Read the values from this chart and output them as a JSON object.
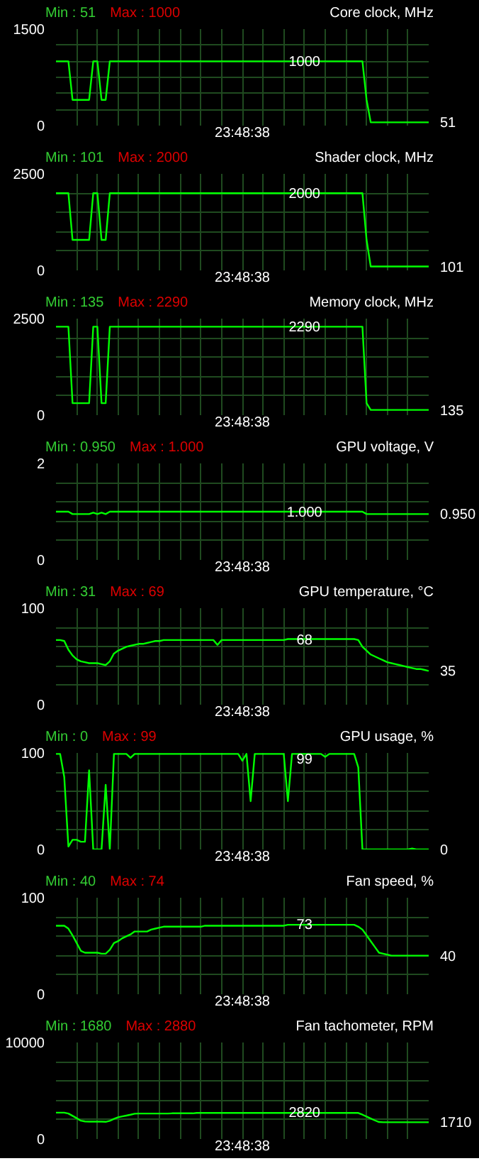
{
  "chart_data": [
    {
      "type": "line",
      "title": "Core clock, MHz",
      "xlabel": "23:48:38",
      "annotations": [
        "Min : 51",
        "Max : 1000",
        {
          "text": "1000",
          "y": 1000
        },
        "51"
      ],
      "color": "#00ff00",
      "ylim": [
        0,
        1500
      ],
      "grid": true,
      "yticks": [
        0,
        {
          "value": 250,
          "label": null
        },
        {
          "value": 500,
          "label": null
        },
        {
          "value": 750,
          "label": null
        },
        {
          "value": 1000,
          "label": null
        },
        {
          "value": 1250,
          "label": null
        },
        1500
      ],
      "categories": [
        null,
        null,
        null,
        null,
        null,
        null,
        null,
        null,
        null,
        null,
        null,
        null,
        null,
        null,
        null,
        null,
        null,
        null,
        null,
        null,
        null,
        null,
        null,
        null,
        null,
        null,
        null,
        null,
        null,
        null,
        null,
        null,
        null,
        null,
        null,
        null,
        null,
        null,
        null,
        null,
        null,
        null,
        null,
        null,
        null,
        null,
        null,
        null,
        null,
        null,
        null,
        null,
        null,
        null,
        null,
        null,
        null,
        null,
        null,
        null,
        null,
        null,
        null,
        null,
        null,
        null,
        null,
        null,
        null,
        null,
        null,
        null,
        null,
        null,
        null,
        null,
        null,
        null,
        null,
        null,
        null,
        null,
        null,
        null,
        null,
        null,
        null,
        null,
        null,
        null,
        null
      ],
      "values": [
        1000,
        1000,
        1000,
        1000,
        400,
        400,
        400,
        400,
        400,
        1000,
        1000,
        400,
        400,
        1000,
        1000,
        1000,
        1000,
        1000,
        1000,
        1000,
        1000,
        1000,
        1000,
        1000,
        1000,
        1000,
        1000,
        1000,
        1000,
        1000,
        1000,
        1000,
        1000,
        1000,
        1000,
        1000,
        1000,
        1000,
        1000,
        1000,
        1000,
        1000,
        1000,
        1000,
        1000,
        1000,
        1000,
        1000,
        1000,
        1000,
        1000,
        1000,
        1000,
        1000,
        1000,
        1000,
        1000,
        1000,
        1000,
        1000,
        1000,
        1000,
        1000,
        1000,
        1000,
        1000,
        1000,
        1000,
        1000,
        1000,
        1000,
        1000,
        1000,
        1000,
        1000,
        400,
        51,
        51,
        51,
        51,
        51,
        51,
        51,
        51,
        51,
        51,
        51,
        51,
        51,
        51,
        51
      ]
    },
    {
      "type": "line",
      "title": "Shader clock, MHz",
      "xlabel": "23:48:38",
      "annotations": [
        "Min : 101",
        "Max : 2000",
        {
          "text": "2000",
          "y": 2000
        },
        "101"
      ],
      "color": "#00ff00",
      "ylim": [
        0,
        2500
      ],
      "grid": true,
      "yticks": [
        0,
        {
          "value": 500,
          "label": null
        },
        {
          "value": 1000,
          "label": null
        },
        {
          "value": 1500,
          "label": null
        },
        {
          "value": 2000,
          "label": null
        },
        2500
      ],
      "categories": [
        null,
        null,
        null,
        null,
        null,
        null,
        null,
        null,
        null,
        null,
        null,
        null,
        null,
        null,
        null,
        null,
        null,
        null,
        null,
        null,
        null,
        null,
        null,
        null,
        null,
        null,
        null,
        null,
        null,
        null,
        null,
        null,
        null,
        null,
        null,
        null,
        null,
        null,
        null,
        null,
        null,
        null,
        null,
        null,
        null,
        null,
        null,
        null,
        null,
        null,
        null,
        null,
        null,
        null,
        null,
        null,
        null,
        null,
        null,
        null,
        null,
        null,
        null,
        null,
        null,
        null,
        null,
        null,
        null,
        null,
        null,
        null,
        null,
        null,
        null,
        null,
        null,
        null,
        null,
        null,
        null,
        null,
        null,
        null,
        null,
        null,
        null,
        null,
        null,
        null,
        null
      ],
      "values": [
        2000,
        2000,
        2000,
        2000,
        790,
        790,
        790,
        790,
        790,
        2000,
        2000,
        790,
        790,
        2000,
        2000,
        2000,
        2000,
        2000,
        2000,
        2000,
        2000,
        2000,
        2000,
        2000,
        2000,
        2000,
        2000,
        2000,
        2000,
        2000,
        2000,
        2000,
        2000,
        2000,
        2000,
        2000,
        2000,
        2000,
        2000,
        2000,
        2000,
        2000,
        2000,
        2000,
        2000,
        2000,
        2000,
        2000,
        2000,
        2000,
        2000,
        2000,
        2000,
        2000,
        2000,
        2000,
        2000,
        2000,
        2000,
        2000,
        2000,
        2000,
        2000,
        2000,
        2000,
        2000,
        2000,
        2000,
        2000,
        2000,
        2000,
        2000,
        2000,
        2000,
        2000,
        790,
        101,
        101,
        101,
        101,
        101,
        101,
        101,
        101,
        101,
        101,
        101,
        101,
        101,
        101,
        101
      ]
    },
    {
      "type": "line",
      "title": "Memory clock, MHz",
      "xlabel": "23:48:38",
      "annotations": [
        "Min : 135",
        "Max : 2290",
        {
          "text": "2290",
          "y": 2290
        },
        "135"
      ],
      "color": "#00ff00",
      "ylim": [
        0,
        2500
      ],
      "grid": true,
      "yticks": [
        0,
        {
          "value": 500,
          "label": null
        },
        {
          "value": 1000,
          "label": null
        },
        {
          "value": 1500,
          "label": null
        },
        {
          "value": 2000,
          "label": null
        },
        2500
      ],
      "categories": [
        null,
        null,
        null,
        null,
        null,
        null,
        null,
        null,
        null,
        null,
        null,
        null,
        null,
        null,
        null,
        null,
        null,
        null,
        null,
        null,
        null,
        null,
        null,
        null,
        null,
        null,
        null,
        null,
        null,
        null,
        null,
        null,
        null,
        null,
        null,
        null,
        null,
        null,
        null,
        null,
        null,
        null,
        null,
        null,
        null,
        null,
        null,
        null,
        null,
        null,
        null,
        null,
        null,
        null,
        null,
        null,
        null,
        null,
        null,
        null,
        null,
        null,
        null,
        null,
        null,
        null,
        null,
        null,
        null,
        null,
        null,
        null,
        null,
        null,
        null,
        null,
        null,
        null,
        null,
        null,
        null,
        null,
        null,
        null,
        null,
        null,
        null,
        null,
        null,
        null,
        null
      ],
      "values": [
        2290,
        2290,
        2290,
        2290,
        310,
        310,
        310,
        310,
        310,
        2290,
        2290,
        310,
        310,
        2290,
        2290,
        2290,
        2290,
        2290,
        2290,
        2290,
        2290,
        2290,
        2290,
        2290,
        2290,
        2290,
        2290,
        2290,
        2290,
        2290,
        2290,
        2290,
        2290,
        2290,
        2290,
        2290,
        2290,
        2290,
        2290,
        2290,
        2290,
        2290,
        2290,
        2290,
        2290,
        2290,
        2290,
        2290,
        2290,
        2290,
        2290,
        2290,
        2290,
        2290,
        2290,
        2290,
        2290,
        2290,
        2290,
        2290,
        2290,
        2290,
        2290,
        2290,
        2290,
        2290,
        2290,
        2290,
        2290,
        2290,
        2290,
        2290,
        2290,
        2290,
        2290,
        310,
        135,
        135,
        135,
        135,
        135,
        135,
        135,
        135,
        135,
        135,
        135,
        135,
        135,
        135,
        135
      ]
    },
    {
      "type": "line",
      "title": "GPU voltage, V",
      "xlabel": "23:48:38",
      "annotations": [
        "Min : 0.950",
        "Max : 1.000",
        {
          "text": "1.000",
          "y": 1.0
        },
        "0.950"
      ],
      "color": "#00ff00",
      "ylim": [
        0,
        2
      ],
      "grid": true,
      "yticks": [
        0,
        {
          "value": 0.4,
          "label": null
        },
        {
          "value": 0.8,
          "label": null
        },
        {
          "value": 1.2,
          "label": null
        },
        {
          "value": 1.6,
          "label": null
        },
        2
      ],
      "categories": [
        null,
        null,
        null,
        null,
        null,
        null,
        null,
        null,
        null,
        null,
        null,
        null,
        null,
        null,
        null,
        null,
        null,
        null,
        null,
        null,
        null,
        null,
        null,
        null,
        null,
        null,
        null,
        null,
        null,
        null,
        null,
        null,
        null,
        null,
        null,
        null,
        null,
        null,
        null,
        null,
        null,
        null,
        null,
        null,
        null,
        null,
        null,
        null,
        null,
        null,
        null,
        null,
        null,
        null,
        null,
        null,
        null,
        null,
        null,
        null,
        null,
        null,
        null,
        null,
        null,
        null,
        null,
        null,
        null,
        null,
        null,
        null,
        null,
        null,
        null,
        null,
        null,
        null,
        null,
        null,
        null,
        null,
        null,
        null,
        null,
        null,
        null,
        null,
        null,
        null,
        null
      ],
      "values": [
        1.0,
        1.0,
        1.0,
        1.0,
        0.95,
        0.95,
        0.95,
        0.95,
        0.95,
        0.98,
        0.95,
        0.98,
        0.95,
        1.0,
        1.0,
        1.0,
        1.0,
        1.0,
        1.0,
        1.0,
        1.0,
        1.0,
        1.0,
        1.0,
        1.0,
        1.0,
        1.0,
        1.0,
        1.0,
        1.0,
        1.0,
        1.0,
        1.0,
        1.0,
        1.0,
        1.0,
        1.0,
        1.0,
        1.0,
        1.0,
        1.0,
        1.0,
        1.0,
        1.0,
        1.0,
        1.0,
        1.0,
        1.0,
        1.0,
        1.0,
        1.0,
        1.0,
        1.0,
        1.0,
        1.0,
        1.0,
        1.0,
        1.0,
        1.0,
        1.0,
        1.0,
        1.0,
        1.0,
        1.0,
        1.0,
        1.0,
        1.0,
        1.0,
        1.0,
        1.0,
        1.0,
        1.0,
        1.0,
        1.0,
        1.0,
        0.95,
        0.95,
        0.95,
        0.95,
        0.95,
        0.95,
        0.95,
        0.95,
        0.95,
        0.95,
        0.95,
        0.95,
        0.95,
        0.95,
        0.95,
        0.95
      ]
    },
    {
      "type": "line",
      "title": "GPU temperature, °C",
      "xlabel": "23:48:38",
      "annotations": [
        "Min : 31",
        "Max : 69",
        {
          "text": "68",
          "y": 68
        },
        "35"
      ],
      "color": "#00ff00",
      "ylim": [
        0,
        100
      ],
      "grid": true,
      "yticks": [
        0,
        {
          "value": 20,
          "label": null
        },
        {
          "value": 40,
          "label": null
        },
        {
          "value": 60,
          "label": null
        },
        {
          "value": 80,
          "label": null
        },
        100
      ],
      "categories": [
        null,
        null,
        null,
        null,
        null,
        null,
        null,
        null,
        null,
        null,
        null,
        null,
        null,
        null,
        null,
        null,
        null,
        null,
        null,
        null,
        null,
        null,
        null,
        null,
        null,
        null,
        null,
        null,
        null,
        null,
        null,
        null,
        null,
        null,
        null,
        null,
        null,
        null,
        null,
        null,
        null,
        null,
        null,
        null,
        null,
        null,
        null,
        null,
        null,
        null,
        null,
        null,
        null,
        null,
        null,
        null,
        null,
        null,
        null,
        null,
        null,
        null,
        null,
        null,
        null,
        null,
        null,
        null,
        null,
        null,
        null,
        null,
        null,
        null,
        null,
        null,
        null,
        null,
        null,
        null,
        null,
        null,
        null,
        null,
        null,
        null,
        null,
        null,
        null,
        null,
        null
      ],
      "values": [
        67,
        67,
        66,
        57,
        51,
        47,
        45,
        44,
        43,
        43,
        43,
        42,
        41,
        45,
        53,
        56,
        58,
        60,
        61,
        62,
        63,
        63,
        64,
        65,
        66,
        66,
        67,
        67,
        67,
        67,
        67,
        67,
        67,
        67,
        67,
        67,
        67,
        67,
        67,
        62,
        67,
        67,
        67,
        67,
        67,
        67,
        67,
        67,
        67,
        67,
        67,
        67,
        67,
        67,
        67,
        67,
        68,
        68,
        68,
        68,
        68,
        68,
        68,
        68,
        68,
        68,
        68,
        68,
        68,
        68,
        68,
        68,
        68,
        67,
        60,
        56,
        52,
        50,
        48,
        46,
        44,
        43,
        42,
        41,
        40,
        39,
        38,
        37,
        37,
        36,
        35
      ]
    },
    {
      "type": "line",
      "title": "GPU usage, %",
      "xlabel": "23:48:38",
      "annotations": [
        "Min : 0",
        "Max : 99",
        {
          "text": "99",
          "y": 99
        },
        "0"
      ],
      "color": "#00ff00",
      "ylim": [
        0,
        100
      ],
      "grid": true,
      "yticks": [
        0,
        {
          "value": 20,
          "label": null
        },
        {
          "value": 40,
          "label": null
        },
        {
          "value": 60,
          "label": null
        },
        {
          "value": 80,
          "label": null
        },
        100
      ],
      "categories": [
        null,
        null,
        null,
        null,
        null,
        null,
        null,
        null,
        null,
        null,
        null,
        null,
        null,
        null,
        null,
        null,
        null,
        null,
        null,
        null,
        null,
        null,
        null,
        null,
        null,
        null,
        null,
        null,
        null,
        null,
        null,
        null,
        null,
        null,
        null,
        null,
        null,
        null,
        null,
        null,
        null,
        null,
        null,
        null,
        null,
        null,
        null,
        null,
        null,
        null,
        null,
        null,
        null,
        null,
        null,
        null,
        null,
        null,
        null,
        null,
        null,
        null,
        null,
        null,
        null,
        null,
        null,
        null,
        null,
        null,
        null,
        null,
        null,
        null,
        null,
        null,
        null,
        null,
        null,
        null,
        null,
        null,
        null,
        null,
        null,
        null,
        null,
        null,
        null,
        null,
        null
      ],
      "values": [
        99,
        99,
        75,
        3,
        10,
        10,
        8,
        8,
        82,
        0,
        0,
        0,
        67,
        0,
        99,
        99,
        99,
        99,
        95,
        99,
        99,
        99,
        99,
        99,
        99,
        99,
        99,
        99,
        99,
        99,
        99,
        99,
        99,
        99,
        99,
        99,
        99,
        99,
        99,
        99,
        99,
        99,
        99,
        99,
        99,
        92,
        99,
        50,
        99,
        99,
        99,
        99,
        99,
        99,
        99,
        99,
        50,
        99,
        99,
        99,
        99,
        99,
        99,
        99,
        99,
        96,
        99,
        99,
        99,
        99,
        99,
        99,
        99,
        85,
        0,
        0,
        0,
        0,
        0,
        0,
        0,
        0,
        0,
        0,
        0,
        0,
        1,
        0,
        0,
        0,
        0
      ]
    },
    {
      "type": "line",
      "title": "Fan speed, %",
      "xlabel": "23:48:38",
      "annotations": [
        "Min : 40",
        "Max : 74",
        {
          "text": "73",
          "y": 73
        },
        "40"
      ],
      "color": "#00ff00",
      "ylim": [
        0,
        100
      ],
      "grid": true,
      "yticks": [
        0,
        {
          "value": 20,
          "label": null
        },
        {
          "value": 40,
          "label": null
        },
        {
          "value": 60,
          "label": null
        },
        {
          "value": 80,
          "label": null
        },
        100
      ],
      "categories": [
        null,
        null,
        null,
        null,
        null,
        null,
        null,
        null,
        null,
        null,
        null,
        null,
        null,
        null,
        null,
        null,
        null,
        null,
        null,
        null,
        null,
        null,
        null,
        null,
        null,
        null,
        null,
        null,
        null,
        null,
        null,
        null,
        null,
        null,
        null,
        null,
        null,
        null,
        null,
        null,
        null,
        null,
        null,
        null,
        null,
        null,
        null,
        null,
        null,
        null,
        null,
        null,
        null,
        null,
        null,
        null,
        null,
        null,
        null,
        null,
        null,
        null,
        null,
        null,
        null,
        null,
        null,
        null,
        null,
        null,
        null,
        null,
        null,
        null,
        null,
        null,
        null,
        null,
        null,
        null,
        null,
        null,
        null,
        null,
        null,
        null,
        null,
        null,
        null,
        null,
        null
      ],
      "values": [
        71,
        71,
        71,
        68,
        61,
        53,
        45,
        43,
        43,
        43,
        43,
        42,
        42,
        46,
        53,
        55,
        58,
        60,
        62,
        65,
        65,
        65,
        65,
        67,
        68,
        69,
        70,
        70,
        70,
        70,
        70,
        70,
        70,
        70,
        70,
        70,
        71,
        71,
        71,
        71,
        71,
        71,
        71,
        71,
        71,
        71,
        71,
        71,
        71,
        71,
        71,
        71,
        71,
        71,
        71,
        71,
        72,
        72,
        72,
        72,
        72,
        72,
        72,
        72,
        72,
        72,
        72,
        72,
        72,
        72,
        72,
        72,
        72,
        70,
        67,
        61,
        55,
        49,
        43,
        42,
        41,
        40,
        40,
        40,
        40,
        40,
        40,
        40,
        40,
        40,
        40
      ]
    },
    {
      "type": "line",
      "title": "Fan tachometer, RPM",
      "xlabel": "23:48:38",
      "annotations": [
        "Min : 1680",
        "Max : 2880",
        {
          "text": "2820",
          "y": 2820
        },
        "1710"
      ],
      "color": "#00ff00",
      "ylim": [
        0,
        10000
      ],
      "grid": true,
      "yticks": [
        0,
        {
          "value": 2000,
          "label": null
        },
        {
          "value": 4000,
          "label": null
        },
        {
          "value": 6000,
          "label": null
        },
        {
          "value": 8000,
          "label": null
        },
        10000
      ],
      "categories": [
        null,
        null,
        null,
        null,
        null,
        null,
        null,
        null,
        null,
        null,
        null,
        null,
        null,
        null,
        null,
        null,
        null,
        null,
        null,
        null,
        null,
        null,
        null,
        null,
        null,
        null,
        null,
        null,
        null,
        null,
        null,
        null,
        null,
        null,
        null,
        null,
        null,
        null,
        null,
        null,
        null,
        null,
        null,
        null,
        null,
        null,
        null,
        null,
        null,
        null,
        null,
        null,
        null,
        null,
        null,
        null,
        null,
        null,
        null,
        null,
        null,
        null,
        null,
        null,
        null,
        null,
        null,
        null,
        null,
        null,
        null,
        null,
        null,
        null,
        null,
        null,
        null,
        null,
        null,
        null,
        null,
        null,
        null,
        null,
        null,
        null,
        null,
        null,
        null,
        null,
        null
      ],
      "values": [
        2730,
        2730,
        2730,
        2640,
        2400,
        2160,
        1900,
        1820,
        1800,
        1800,
        1800,
        1800,
        1780,
        1890,
        2080,
        2250,
        2340,
        2430,
        2520,
        2620,
        2640,
        2640,
        2640,
        2640,
        2640,
        2640,
        2640,
        2640,
        2660,
        2660,
        2660,
        2660,
        2660,
        2660,
        2700,
        2700,
        2700,
        2700,
        2700,
        2700,
        2700,
        2700,
        2700,
        2700,
        2700,
        2700,
        2700,
        2700,
        2700,
        2700,
        2700,
        2700,
        2700,
        2700,
        2700,
        2700,
        2700,
        2700,
        2700,
        2700,
        2700,
        2700,
        2700,
        2700,
        2700,
        2700,
        2700,
        2700,
        2700,
        2700,
        2700,
        2700,
        2700,
        2700,
        2520,
        2320,
        2130,
        1930,
        1760,
        1740,
        1740,
        1740,
        1740,
        1740,
        1740,
        1740,
        1740,
        1740,
        1740,
        1740,
        1740
      ]
    }
  ]
}
